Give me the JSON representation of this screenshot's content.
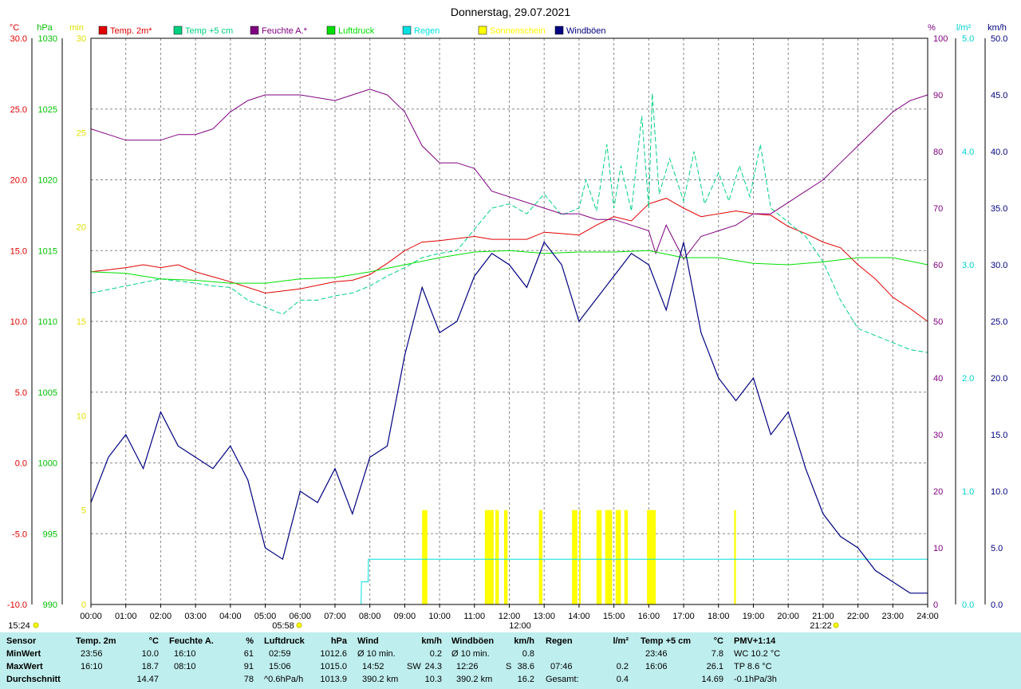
{
  "title": "Donnerstag, 29.07.2021",
  "legend": [
    {
      "label": "Temp. 2m*",
      "color": "#e00000"
    },
    {
      "label": "Temp +5 cm",
      "color": "#00d080"
    },
    {
      "label": "Feuchte A.*",
      "color": "#800080"
    },
    {
      "label": "Luftdruck",
      "color": "#00e000"
    },
    {
      "label": "Regen",
      "color": "#00e0e0"
    },
    {
      "label": "Sonnenschein",
      "color": "#ffff00"
    },
    {
      "label": "Windböen",
      "color": "#000080"
    }
  ],
  "axis_units": {
    "temp": "°C",
    "pressure": "hPa",
    "minutes": "min",
    "humidity": "%",
    "rain": "l/m²",
    "wind": "km/h"
  },
  "sun_marks": {
    "sunrise": "05:58",
    "noon": "12:00",
    "sunset": "21:22"
  },
  "footer_time": "15:24",
  "chart_data": {
    "type": "line",
    "x_ticks": [
      "00:00",
      "01:00",
      "02:00",
      "03:00",
      "04:00",
      "05:00",
      "06:00",
      "07:00",
      "08:00",
      "09:00",
      "10:00",
      "11:00",
      "12:00",
      "13:00",
      "14:00",
      "15:00",
      "16:00",
      "17:00",
      "18:00",
      "19:00",
      "20:00",
      "21:00",
      "22:00",
      "23:00",
      "24:00"
    ],
    "xlim": [
      0,
      24
    ],
    "axes": {
      "temp": {
        "range": [
          -10,
          30
        ],
        "ticks": [
          "30.0",
          "25.0",
          "20.0",
          "15.0",
          "10.0",
          "5.0",
          "0.0",
          "-5.0",
          "-10.0"
        ],
        "color": "#e00000"
      },
      "pressure": {
        "range": [
          990,
          1030
        ],
        "ticks": [
          "1030",
          "1025",
          "1020",
          "1015",
          "1010",
          "1005",
          "1000",
          "995",
          "990"
        ],
        "color": "#00c000"
      },
      "minutes": {
        "range": [
          0,
          30
        ],
        "ticks": [
          "30",
          "25",
          "20",
          "15",
          "10",
          "5",
          "0"
        ],
        "color": "#e0e000"
      },
      "humidity": {
        "range": [
          0,
          100
        ],
        "ticks": [
          "100",
          "90",
          "80",
          "70",
          "60",
          "50",
          "40",
          "30",
          "20",
          "10",
          "0"
        ],
        "color": "#800080"
      },
      "rain": {
        "range": [
          0,
          5
        ],
        "ticks": [
          "5.0",
          "4.0",
          "3.0",
          "2.0",
          "1.0",
          "0.0"
        ],
        "color": "#00d0d0"
      },
      "wind": {
        "range": [
          0,
          50
        ],
        "ticks": [
          "50.0",
          "45.0",
          "40.0",
          "35.0",
          "30.0",
          "25.0",
          "20.0",
          "15.0",
          "10.0",
          "5.0",
          "0.0"
        ],
        "color": "#000080"
      }
    },
    "series": [
      {
        "name": "Temp. 2m*",
        "axis": "temp",
        "color": "#e00000",
        "x": [
          0,
          1,
          1.5,
          2,
          2.5,
          3,
          4,
          5,
          6,
          7,
          7.5,
          8,
          8.5,
          9,
          9.5,
          10,
          11,
          11.5,
          12,
          12.5,
          13,
          13.5,
          14,
          14.5,
          15,
          15.5,
          16,
          16.5,
          17,
          17.5,
          18,
          18.5,
          19,
          19.5,
          20,
          20.5,
          21,
          21.5,
          22,
          22.5,
          23,
          23.5,
          24
        ],
        "y": [
          13.5,
          13.8,
          14.0,
          13.8,
          14.0,
          13.5,
          12.8,
          12.0,
          12.3,
          12.8,
          12.9,
          13.3,
          14.1,
          15.0,
          15.6,
          15.7,
          16.0,
          15.8,
          15.8,
          15.8,
          16.3,
          16.2,
          16.1,
          16.8,
          17.4,
          17.1,
          18.3,
          18.7,
          18.0,
          17.4,
          17.6,
          17.8,
          17.6,
          17.5,
          16.7,
          16.2,
          15.6,
          15.2,
          14.0,
          13.0,
          11.7,
          10.9,
          10.0
        ]
      },
      {
        "name": "Temp +5 cm",
        "axis": "temp",
        "color": "#00d080",
        "x": [
          0,
          1,
          2,
          3,
          3.5,
          4,
          4.5,
          5,
          5.5,
          6,
          6.5,
          7,
          7.5,
          8,
          8.5,
          9,
          9.5,
          10,
          10.5,
          11,
          11.5,
          12,
          12.5,
          13,
          13.5,
          14,
          14.2,
          14.5,
          14.8,
          15,
          15.2,
          15.5,
          15.8,
          16,
          16.1,
          16.3,
          16.6,
          17,
          17.3,
          17.6,
          18,
          18.3,
          18.6,
          18.9,
          19.2,
          19.5,
          20,
          20.5,
          21,
          21.5,
          22,
          22.5,
          23,
          23.5,
          24
        ],
        "y": [
          12.0,
          12.5,
          13.0,
          12.7,
          12.5,
          12.4,
          11.5,
          11.0,
          10.5,
          11.5,
          11.5,
          11.8,
          12.0,
          12.5,
          13.2,
          13.8,
          14.5,
          14.8,
          15.0,
          16.5,
          18.0,
          18.3,
          17.6,
          19.0,
          17.5,
          18.0,
          20.0,
          17.8,
          22.5,
          18.0,
          21.0,
          17.8,
          24.5,
          18.0,
          26.1,
          19.0,
          21.5,
          18.5,
          22.0,
          18.3,
          20.5,
          18.5,
          21.0,
          18.8,
          22.5,
          18.0,
          17.0,
          16.0,
          14.2,
          11.5,
          9.5,
          9.0,
          8.5,
          8.0,
          7.8
        ]
      },
      {
        "name": "Feuchte A.*",
        "axis": "humidity",
        "color": "#800080",
        "x": [
          0,
          0.5,
          1,
          1.5,
          2,
          2.5,
          3,
          3.5,
          4,
          4.5,
          5,
          6,
          7,
          7.5,
          8,
          8.5,
          9,
          9.5,
          10,
          10.5,
          11,
          11.5,
          12,
          12.5,
          13,
          13.5,
          14,
          14.5,
          15,
          15.5,
          16,
          16.2,
          16.5,
          17,
          17.5,
          18,
          18.5,
          19,
          19.5,
          20,
          20.5,
          21,
          21.5,
          22,
          22.5,
          23,
          23.5,
          24
        ],
        "y": [
          84,
          83,
          82,
          82,
          82,
          83,
          83,
          84,
          87,
          89,
          90,
          90,
          89,
          90,
          91,
          90,
          87,
          81,
          78,
          78,
          77,
          73,
          72,
          71,
          70,
          69,
          69,
          68,
          68,
          67,
          66,
          62,
          67,
          61,
          65,
          66,
          67,
          69,
          69,
          71,
          73,
          75,
          78,
          81,
          84,
          87,
          89,
          90
        ]
      },
      {
        "name": "Luftdruck",
        "axis": "pressure",
        "color": "#00e000",
        "x": [
          0,
          1,
          2,
          3,
          4,
          5,
          6,
          7,
          8,
          9,
          10,
          11,
          12,
          13,
          14,
          15,
          16,
          17,
          18,
          19,
          20,
          21,
          22,
          23,
          24
        ],
        "y": [
          1013.5,
          1013.4,
          1013.0,
          1012.9,
          1012.7,
          1012.7,
          1013.0,
          1013.1,
          1013.5,
          1014.0,
          1014.5,
          1014.9,
          1015.0,
          1014.8,
          1014.9,
          1014.9,
          1015.0,
          1014.5,
          1014.5,
          1014.1,
          1014.0,
          1014.2,
          1014.5,
          1014.5,
          1014.0
        ]
      },
      {
        "name": "Regen",
        "axis": "rain",
        "color": "#00e0e0",
        "x": [
          0,
          7.75,
          7.76,
          7.95,
          7.96,
          24
        ],
        "y": [
          0,
          0,
          0.2,
          0.2,
          0.4,
          0.4
        ]
      },
      {
        "name": "Windböen",
        "axis": "wind",
        "color": "#000080",
        "x": [
          0,
          0.5,
          1,
          1.5,
          2,
          2.5,
          3,
          3.5,
          4,
          4.5,
          5,
          5.5,
          6,
          6.5,
          7,
          7.5,
          8,
          8.5,
          9,
          9.5,
          10,
          10.5,
          11,
          11.5,
          12,
          12.5,
          13,
          13.5,
          14,
          14.5,
          15,
          15.5,
          16,
          16.5,
          17,
          17.5,
          18,
          18.5,
          19,
          19.5,
          20,
          20.5,
          21,
          21.5,
          22,
          22.5,
          23,
          23.5,
          24
        ],
        "y": [
          9,
          13,
          15,
          12,
          17,
          14,
          13,
          12,
          14,
          11,
          5,
          4,
          10,
          9,
          12,
          8,
          13,
          14,
          22,
          28,
          24,
          25,
          29,
          31,
          30,
          28,
          32,
          30,
          25,
          27,
          29,
          31,
          30,
          26,
          32,
          24,
          20,
          18,
          20,
          15,
          17,
          12,
          8,
          6,
          5,
          3,
          2,
          1,
          1
        ]
      }
    ],
    "sunshine": {
      "axis": "minutes",
      "color": "#ffff00",
      "intervals": [
        [
          9.5,
          9.65
        ],
        [
          11.3,
          11.55
        ],
        [
          11.6,
          11.7
        ],
        [
          11.85,
          11.95
        ],
        [
          12.85,
          12.95
        ],
        [
          13.8,
          13.95
        ],
        [
          14.0,
          14.05
        ],
        [
          14.5,
          14.65
        ],
        [
          14.75,
          14.95
        ],
        [
          15.05,
          15.2
        ],
        [
          15.3,
          15.4
        ],
        [
          15.95,
          16.2
        ],
        [
          18.45,
          18.5
        ]
      ]
    }
  },
  "footer": {
    "sensor": {
      "title": "Sensor",
      "rows": [
        "MinWert",
        "MaxWert",
        "Durchschnitt"
      ]
    },
    "temp2m": {
      "title": "Temp. 2m",
      "unit": "°C",
      "min_time": "23:56",
      "min_val": "10.0",
      "max_time": "16:10",
      "max_val": "18.7",
      "avg_val": "14.47"
    },
    "feuchte": {
      "title": "Feuchte A.",
      "unit": "%",
      "min_time": "16:10",
      "min_val": "61",
      "max_time": "08:10",
      "max_val": "91",
      "avg_val": "78"
    },
    "luftdruck": {
      "title": "Luftdruck",
      "unit": "hPa",
      "min_time": "02:59",
      "min_val": "1012.6",
      "max_time": "15:06",
      "max_val": "1015.0",
      "avg_label": "^0.6hPa/h",
      "avg_val": "1013.9"
    },
    "wind": {
      "title": "Wind",
      "unit": "km/h",
      "min_label": "Ø 10 min.",
      "min_val": "0.2",
      "max_time": "14:52",
      "max_dir": "SW",
      "max_val": "24.3",
      "avg_dist": "390.2 km",
      "avg_val": "10.3"
    },
    "windboeen": {
      "title": "Windböen",
      "unit": "km/h",
      "min_label": "Ø 10 min.",
      "min_val": "0.8",
      "max_time": "12:26",
      "max_dir": "S",
      "max_val": "38.6",
      "avg_dist": "390.2 km",
      "avg_val": "16.2"
    },
    "regen": {
      "title": "Regen",
      "unit": "l/m²",
      "max_time": "07:46",
      "max_val": "0.2",
      "avg_label": "Gesamt:",
      "avg_val": "0.4"
    },
    "temp5cm": {
      "title": "Temp +5 cm",
      "unit": "°C",
      "min_time": "23:46",
      "min_val": "7.8",
      "max_time": "16:06",
      "max_val": "26.1",
      "avg_val": "14.69"
    },
    "pmv": {
      "title": "PMV+1:14",
      "wc": "WC 10.2 °C",
      "tp": "TP 8.6 °C",
      "trend": "-0.1hPa/3h"
    }
  }
}
